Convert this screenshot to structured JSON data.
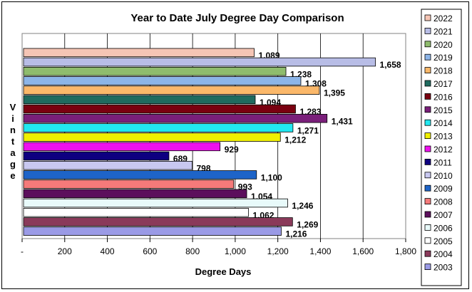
{
  "chart_data": {
    "type": "bar",
    "orientation": "horizontal",
    "title": "Year to Date July Degree Day Comparison",
    "xlabel": "Degree Days",
    "ylabel": "Vintage",
    "xlim": [
      0,
      1800
    ],
    "x_ticks": [
      "-",
      "200",
      "400",
      "600",
      "800",
      "1,000",
      "1,200",
      "1,400",
      "1,600",
      "1,800"
    ],
    "grid": "vertical",
    "legend_position": "right",
    "series": [
      {
        "name": "2022",
        "value": 1089,
        "label": "1,089",
        "color": "#f5c5b5"
      },
      {
        "name": "2021",
        "value": 1658,
        "label": "1,658",
        "color": "#b8bde6"
      },
      {
        "name": "2020",
        "value": 1238,
        "label": "1,238",
        "color": "#8fbc6d"
      },
      {
        "name": "2019",
        "value": 1308,
        "label": "1,308",
        "color": "#8cb5e8"
      },
      {
        "name": "2018",
        "value": 1395,
        "label": "1,395",
        "color": "#fbb86a"
      },
      {
        "name": "2017",
        "value": 1094,
        "label": "1,094",
        "color": "#1f6b5f"
      },
      {
        "name": "2016",
        "value": 1283,
        "label": "1,283",
        "color": "#7a0010"
      },
      {
        "name": "2015",
        "value": 1431,
        "label": "1,431",
        "color": "#7a1f7a"
      },
      {
        "name": "2014",
        "value": 1271,
        "label": "1,271",
        "color": "#22e8f0"
      },
      {
        "name": "2013",
        "value": 1212,
        "label": "1,212",
        "color": "#f0f000"
      },
      {
        "name": "2012",
        "value": 929,
        "label": "929",
        "color": "#ee11ee"
      },
      {
        "name": "2011",
        "value": 689,
        "label": "689",
        "color": "#0e0080"
      },
      {
        "name": "2010",
        "value": 798,
        "label": "798",
        "color": "#c8c8f0"
      },
      {
        "name": "2009",
        "value": 1100,
        "label": "1,100",
        "color": "#1e64c8"
      },
      {
        "name": "2008",
        "value": 993,
        "label": "993",
        "color": "#f57a7a"
      },
      {
        "name": "2007",
        "value": 1054,
        "label": "1,054",
        "color": "#5c0f5c"
      },
      {
        "name": "2006",
        "value": 1246,
        "label": "1,246",
        "color": "#e8fafa"
      },
      {
        "name": "2005",
        "value": 1062,
        "label": "1,062",
        "color": "#ffffff"
      },
      {
        "name": "2004",
        "value": 1269,
        "label": "1,269",
        "color": "#8a3a5a"
      },
      {
        "name": "2003",
        "value": 1216,
        "label": "1,216",
        "color": "#9a9ae6"
      }
    ]
  }
}
